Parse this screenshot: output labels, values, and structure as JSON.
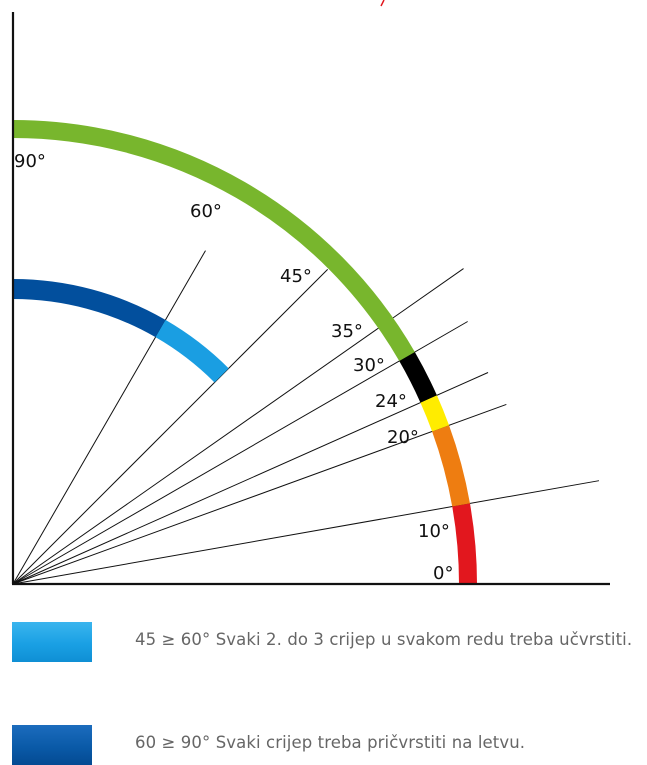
{
  "diagram": {
    "angle_labels": [
      {
        "id": "90",
        "text": "90°"
      },
      {
        "id": "60",
        "text": "60°"
      },
      {
        "id": "45",
        "text": "45°"
      },
      {
        "id": "35",
        "text": "35°"
      },
      {
        "id": "30",
        "text": "30°"
      },
      {
        "id": "24",
        "text": "24°"
      },
      {
        "id": "20",
        "text": "20°"
      },
      {
        "id": "10",
        "text": "10°"
      },
      {
        "id": "0",
        "text": "0°"
      }
    ],
    "ray_angles_deg": [
      10,
      20,
      24,
      30,
      35,
      45,
      60
    ],
    "outer_arc_segments": [
      {
        "name": "red",
        "from_deg": 0,
        "to_deg": 10,
        "color": "#e2171e"
      },
      {
        "name": "orange",
        "from_deg": 10,
        "to_deg": 20,
        "color": "#ee7d11"
      },
      {
        "name": "yellow",
        "from_deg": 20,
        "to_deg": 24,
        "color": "#ffec00"
      },
      {
        "name": "black",
        "from_deg": 24,
        "to_deg": 30,
        "color": "#000000"
      },
      {
        "name": "green",
        "from_deg": 30,
        "to_deg": 90,
        "color": "#78b62d"
      }
    ],
    "inner_arc_segments": [
      {
        "name": "light-blue",
        "from_deg": 45,
        "to_deg": 60,
        "color": "#1a9ee2"
      },
      {
        "name": "dark-blue",
        "from_deg": 60,
        "to_deg": 90,
        "color": "#024f9d"
      }
    ]
  },
  "legend": [
    {
      "swatch_color": "#1aa0e4",
      "text": "45 ≥ 60° Svaki 2. do 3 crijep u svakom redu treba učvrstiti."
    },
    {
      "swatch_color": "#0a5aa8",
      "text": "60 ≥ 90° Svaki crijep treba pričvrstiti na letvu."
    }
  ]
}
